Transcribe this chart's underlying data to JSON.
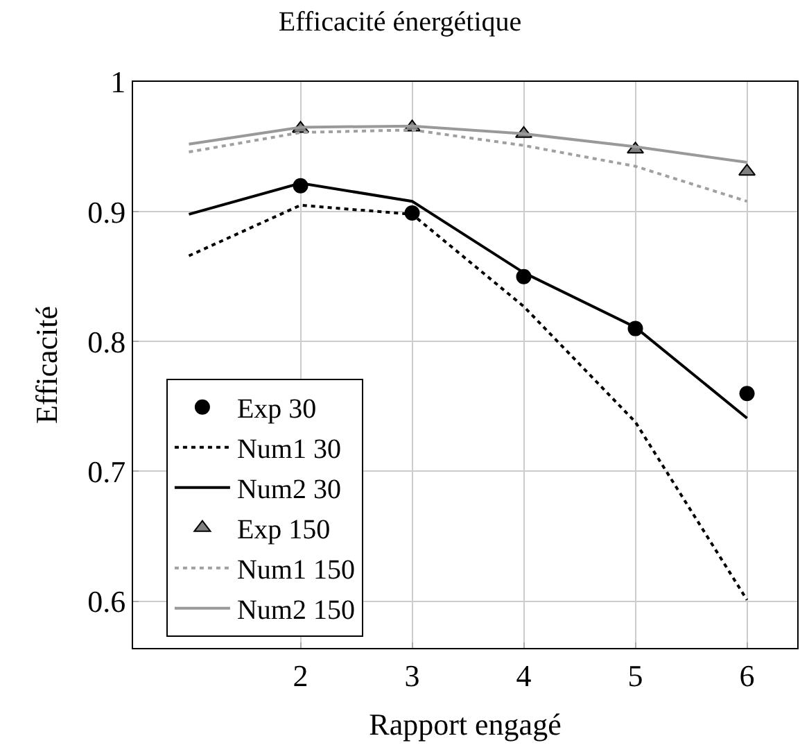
{
  "chart_data": {
    "type": "line",
    "title": "Efficacité énergétique",
    "xlabel": "Rapport engagé",
    "ylabel": "Efficacité",
    "xlim": [
      0.5,
      6.45
    ],
    "xticks": [
      2,
      3,
      4,
      5,
      6
    ],
    "ylim": [
      0.564,
      1.0
    ],
    "yticks": [
      0.6,
      0.7,
      0.8,
      0.9,
      1
    ],
    "grid": true,
    "legend": "bottom left",
    "series": [
      {
        "name": "Exp 30",
        "type": "scatter",
        "marker": "circle",
        "color": "#000000",
        "x": [
          2,
          3,
          4,
          5,
          6
        ],
        "values": [
          0.92,
          0.899,
          0.85,
          0.81,
          0.76
        ]
      },
      {
        "name": "Num1 30",
        "line_style": "dotted",
        "color": "#000000",
        "x": [
          1,
          2,
          3,
          4,
          5,
          6
        ],
        "values": [
          0.866,
          0.905,
          0.898,
          0.827,
          0.738,
          0.601
        ]
      },
      {
        "name": "Num2 30",
        "line_style": "solid",
        "color": "#000000",
        "x": [
          1,
          2,
          3,
          4,
          5,
          6
        ],
        "values": [
          0.898,
          0.922,
          0.908,
          0.853,
          0.811,
          0.741
        ]
      },
      {
        "name": "Exp 150",
        "type": "scatter",
        "marker": "triangle",
        "color": "#808080",
        "x": [
          2,
          3,
          4,
          5,
          6
        ],
        "values": [
          0.964,
          0.965,
          0.96,
          0.948,
          0.931
        ]
      },
      {
        "name": "Num1 150",
        "line_style": "dotted",
        "color": "#a0a0a0",
        "x": [
          1,
          2,
          3,
          4,
          5,
          6
        ],
        "values": [
          0.946,
          0.961,
          0.963,
          0.951,
          0.935,
          0.908
        ]
      },
      {
        "name": "Num2 150",
        "line_style": "solid",
        "color": "#999999",
        "x": [
          1,
          2,
          3,
          4,
          5,
          6
        ],
        "values": [
          0.952,
          0.965,
          0.966,
          0.96,
          0.95,
          0.938
        ]
      }
    ]
  }
}
